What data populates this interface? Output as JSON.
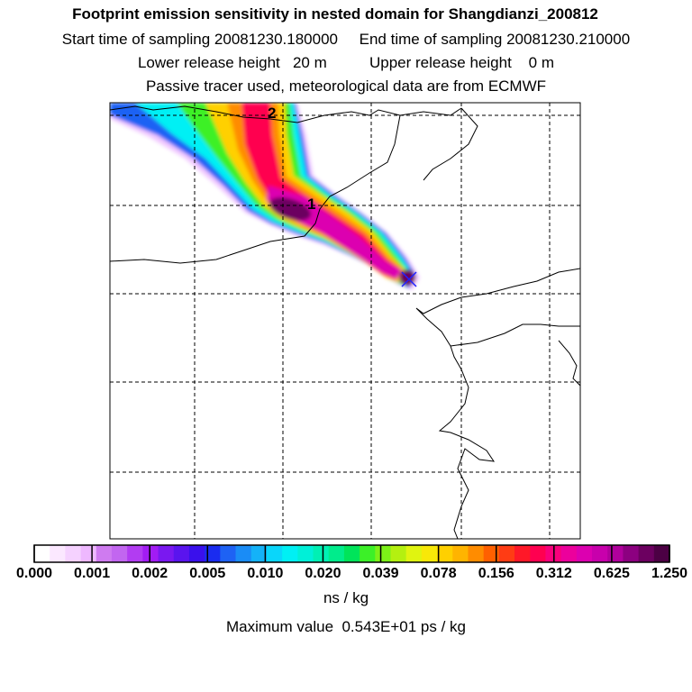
{
  "header": {
    "title": "Footprint emission sensitivity in nested domain for Shangdianzi_200812",
    "sampling_line": "Start time of sampling 20081230.180000     End time of sampling 20081230.210000",
    "release_line": "Lower release height   20 m          Upper release height    0 m",
    "tracer_line": "Passive tracer used, meteorological data are from ECMWF"
  },
  "map": {
    "markers": [
      {
        "id": "1",
        "label": "1"
      },
      {
        "id": "2",
        "label": "2"
      }
    ]
  },
  "colorbar": {
    "ticks": [
      "0.000",
      "0.001",
      "0.002",
      "0.005",
      "0.010",
      "0.020",
      "0.039",
      "0.078",
      "0.156",
      "0.312",
      "0.625",
      "1.250"
    ],
    "colors": [
      "#ffffff",
      "#fbe8ff",
      "#f5d2ff",
      "#eeb8ff",
      "#cf7bf0",
      "#c266f0",
      "#b23cf2",
      "#a21cf4",
      "#7a18f0",
      "#5a14ee",
      "#3a10ec",
      "#1a2cf0",
      "#1e62f4",
      "#1a8cf6",
      "#14b2f8",
      "#0ad6fa",
      "#00f0f4",
      "#00f0d8",
      "#00f0b4",
      "#00ec8c",
      "#00e45a",
      "#3cf028",
      "#7cf018",
      "#b4f010",
      "#e0f410",
      "#f8e808",
      "#ffd000",
      "#ffb400",
      "#ff8c00",
      "#ff6000",
      "#ff3c14",
      "#ff1828",
      "#ff0050",
      "#f8007c",
      "#ec009c",
      "#dc00b0",
      "#c800ac",
      "#b0009c",
      "#8c0080",
      "#6c0060",
      "#4c0044"
    ],
    "units": "ns / kg"
  },
  "footer": {
    "max_value": "Maximum value  0.543E+01 ps / kg"
  }
}
